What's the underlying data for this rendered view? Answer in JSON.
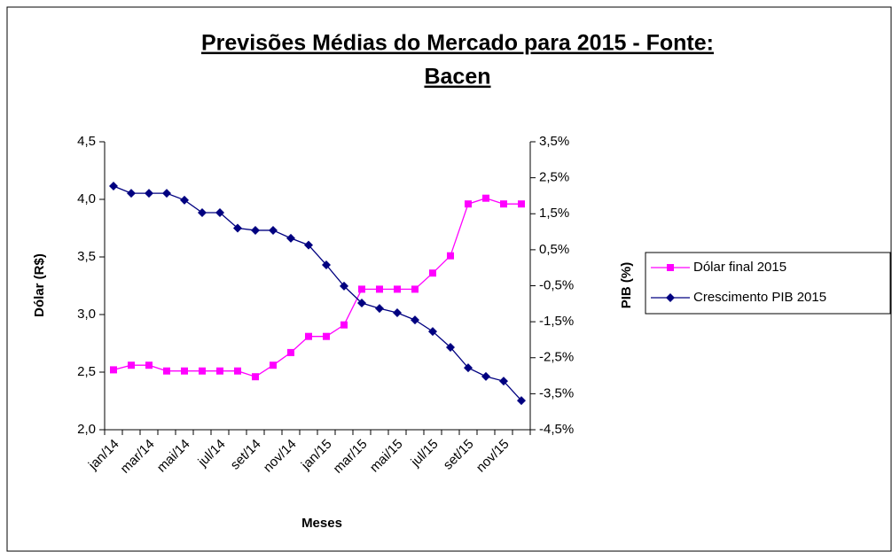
{
  "chart_data": {
    "type": "line",
    "title": [
      "Previsões Médias do Mercado para 2015 - Fonte:",
      "Bacen"
    ],
    "x_label": "Meses",
    "y_label": "Dólar (R$)",
    "y2_label": "PIB (%)",
    "categories": [
      "jan/14",
      null,
      "mar/14",
      null,
      "mai/14",
      null,
      "jul/14",
      null,
      "set/14",
      null,
      "nov/14",
      null,
      "jan/15",
      null,
      "mar/15",
      null,
      "mai/15",
      null,
      "jul/15",
      null,
      "set/15",
      null,
      "nov/15",
      null
    ],
    "ylim": [
      2.0,
      4.5
    ],
    "yticks": [
      {
        "value": 2.0,
        "label": "2,0"
      },
      {
        "value": 2.5,
        "label": "2,5"
      },
      {
        "value": 3.0,
        "label": "3,0"
      },
      {
        "value": 3.5,
        "label": "3,5"
      },
      {
        "value": 4.0,
        "label": "4,0"
      },
      {
        "value": 4.5,
        "label": "4,5"
      }
    ],
    "y2lim": [
      -4.5,
      3.5
    ],
    "y2ticks": [
      {
        "value": -4.5,
        "label": "-4,5%"
      },
      {
        "value": -3.5,
        "label": "-3,5%"
      },
      {
        "value": -2.5,
        "label": "-2,5%"
      },
      {
        "value": -1.5,
        "label": "-1,5%"
      },
      {
        "value": -0.5,
        "label": "-0,5%"
      },
      {
        "value": 0.5,
        "label": "0,5%"
      },
      {
        "value": 1.5,
        "label": "1,5%"
      },
      {
        "value": 2.5,
        "label": "2,5%"
      },
      {
        "value": 3.5,
        "label": "3,5%"
      }
    ],
    "series": [
      {
        "name": "Dólar final 2015",
        "color": "#ff00ff",
        "marker": "square",
        "axis": "y",
        "values": [
          2.52,
          2.56,
          2.56,
          2.51,
          2.51,
          2.51,
          2.51,
          2.51,
          2.46,
          2.56,
          2.67,
          2.81,
          2.81,
          2.91,
          3.22,
          3.22,
          3.22,
          3.22,
          3.36,
          3.51,
          3.96,
          4.01,
          3.96,
          3.96
        ]
      },
      {
        "name": "Crescimento PIB 2015",
        "color": "#000080",
        "marker": "diamond",
        "axis": "y2",
        "values": [
          2.27,
          2.07,
          2.07,
          2.07,
          1.88,
          1.53,
          1.53,
          1.1,
          1.04,
          1.04,
          0.82,
          0.63,
          0.08,
          -0.51,
          -0.98,
          -1.13,
          -1.25,
          -1.45,
          -1.77,
          -2.21,
          -2.78,
          -3.02,
          -3.15,
          -3.69
        ]
      }
    ]
  }
}
